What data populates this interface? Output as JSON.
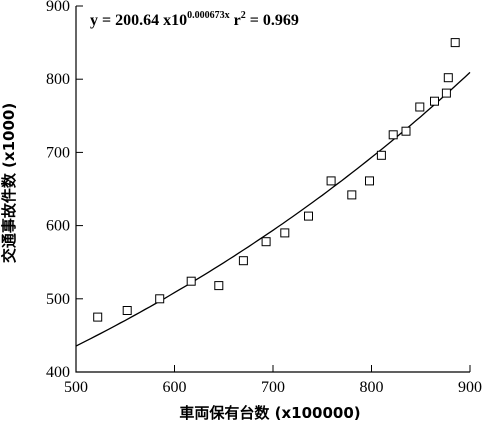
{
  "chart_data": {
    "type": "scatter",
    "xlabel": "車両保有台数 (x100000)",
    "ylabel": "交通事故件数 (x1000)",
    "xlim": [
      500,
      900
    ],
    "ylim": [
      400,
      900
    ],
    "xticks": [
      "500",
      "600",
      "700",
      "800",
      "900"
    ],
    "yticks": [
      "400",
      "500",
      "600",
      "700",
      "800",
      "900"
    ],
    "grid": false,
    "equation": {
      "prefix": "y = 200.64 x10",
      "exponent": "0.000673x",
      "r2_label": " r",
      "r2_exp": "2",
      "r2_value": " = 0.969"
    },
    "fit": {
      "a": 200.64,
      "b": 0.000673,
      "x_range": [
        500,
        900
      ]
    },
    "points": [
      {
        "x": 522,
        "y": 475
      },
      {
        "x": 552,
        "y": 484
      },
      {
        "x": 585,
        "y": 500
      },
      {
        "x": 617,
        "y": 524
      },
      {
        "x": 645,
        "y": 518
      },
      {
        "x": 670,
        "y": 552
      },
      {
        "x": 693,
        "y": 578
      },
      {
        "x": 712,
        "y": 590
      },
      {
        "x": 736,
        "y": 613
      },
      {
        "x": 759,
        "y": 661
      },
      {
        "x": 780,
        "y": 642
      },
      {
        "x": 798,
        "y": 661
      },
      {
        "x": 810,
        "y": 696
      },
      {
        "x": 822,
        "y": 724
      },
      {
        "x": 835,
        "y": 729
      },
      {
        "x": 849,
        "y": 762
      },
      {
        "x": 864,
        "y": 770
      },
      {
        "x": 876,
        "y": 781
      },
      {
        "x": 878,
        "y": 802
      },
      {
        "x": 885,
        "y": 850
      }
    ]
  }
}
